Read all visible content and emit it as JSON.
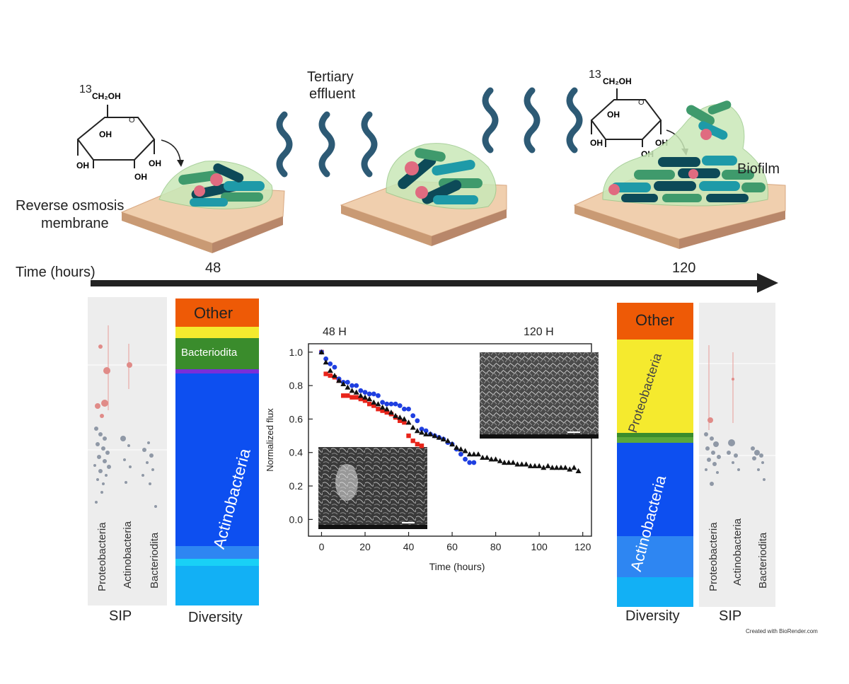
{
  "top": {
    "mol_left_label": "13",
    "mol_left_ch2oh": "CH₂OH",
    "mol_right_label": "13",
    "mol_right_ch2oh": "CH₂OH",
    "oh": "OH",
    "effluent_line1": "Tertiary",
    "effluent_line2": "effluent",
    "membrane_line1": "Reverse osmosis",
    "membrane_line2": "membrane",
    "biofilm": "Biofilm"
  },
  "timeline": {
    "label": "Time (hours)",
    "t1": "48",
    "t2": "120"
  },
  "left": {
    "sip_categories": [
      "Proteobacteria",
      "Actinobacteria",
      "Bacteriodita"
    ],
    "sip_title": "SIP",
    "diversity_title": "Diversity",
    "diversity_labels": {
      "other": "Other",
      "bacteriodita": "Bacteriodita",
      "actinobacteria": "Actinobacteria"
    }
  },
  "right": {
    "sip_categories": [
      "Proteobacteria",
      "Actinobacteria",
      "Bacteriodita"
    ],
    "sip_title": "SIP",
    "diversity_title": "Diversity",
    "diversity_labels": {
      "other": "Other",
      "proteobacteria": "Proteobacteria",
      "actinobacteria": "Actinobacteria"
    }
  },
  "chart_data": {
    "type": "scatter",
    "title": "",
    "annotations": [
      "48 H",
      "120 H"
    ],
    "xlabel": "Time (hours)",
    "ylabel": "Normalized flux",
    "xlim": [
      -6,
      124
    ],
    "ylim": [
      -0.1,
      1.05
    ],
    "xticks": [
      0,
      20,
      40,
      60,
      80,
      100,
      120
    ],
    "yticks": [
      0.0,
      0.2,
      0.4,
      0.6,
      0.8,
      1.0
    ],
    "series": [
      {
        "name": "red",
        "color": "#e8241a",
        "marker": "square",
        "x": [
          0,
          2,
          4,
          6,
          8,
          10,
          12,
          14,
          16,
          18,
          20,
          22,
          24,
          26,
          28,
          30,
          32,
          34,
          36,
          38,
          40,
          42,
          44,
          46
        ],
        "y": [
          1.0,
          0.87,
          0.86,
          0.85,
          0.83,
          0.74,
          0.74,
          0.73,
          0.73,
          0.72,
          0.71,
          0.69,
          0.68,
          0.66,
          0.65,
          0.64,
          0.63,
          0.61,
          0.59,
          0.58,
          0.5,
          0.47,
          0.45,
          0.44
        ]
      },
      {
        "name": "blue",
        "color": "#1f3fe0",
        "marker": "circle",
        "x": [
          0,
          2,
          4,
          6,
          8,
          10,
          12,
          14,
          16,
          18,
          20,
          22,
          24,
          26,
          28,
          30,
          32,
          34,
          36,
          38,
          40,
          42,
          44,
          46,
          48,
          50,
          52,
          54,
          56,
          58,
          60,
          62,
          64,
          66,
          68,
          70
        ],
        "y": [
          1.0,
          0.96,
          0.93,
          0.91,
          0.84,
          0.82,
          0.82,
          0.8,
          0.8,
          0.77,
          0.76,
          0.75,
          0.75,
          0.74,
          0.7,
          0.69,
          0.69,
          0.69,
          0.68,
          0.66,
          0.66,
          0.62,
          0.59,
          0.54,
          0.53,
          0.51,
          0.5,
          0.49,
          0.48,
          0.46,
          0.45,
          0.42,
          0.39,
          0.36,
          0.34,
          0.34
        ]
      },
      {
        "name": "black",
        "color": "#111111",
        "marker": "triangle",
        "x": [
          0,
          2,
          4,
          6,
          8,
          10,
          12,
          14,
          16,
          18,
          20,
          22,
          24,
          26,
          28,
          30,
          32,
          34,
          36,
          38,
          40,
          42,
          44,
          46,
          48,
          50,
          52,
          54,
          56,
          58,
          60,
          62,
          64,
          66,
          68,
          70,
          72,
          74,
          76,
          78,
          80,
          82,
          84,
          86,
          88,
          90,
          92,
          94,
          96,
          98,
          100,
          102,
          104,
          106,
          108,
          110,
          112,
          114,
          116,
          118
        ],
        "y": [
          1.0,
          0.94,
          0.89,
          0.86,
          0.83,
          0.81,
          0.79,
          0.77,
          0.76,
          0.74,
          0.73,
          0.72,
          0.7,
          0.69,
          0.67,
          0.66,
          0.64,
          0.62,
          0.61,
          0.6,
          0.58,
          0.55,
          0.53,
          0.52,
          0.51,
          0.51,
          0.5,
          0.49,
          0.48,
          0.47,
          0.45,
          0.43,
          0.42,
          0.41,
          0.39,
          0.39,
          0.39,
          0.37,
          0.37,
          0.36,
          0.36,
          0.35,
          0.34,
          0.34,
          0.34,
          0.33,
          0.33,
          0.33,
          0.32,
          0.32,
          0.32,
          0.31,
          0.32,
          0.31,
          0.31,
          0.31,
          0.31,
          0.3,
          0.31,
          0.29
        ]
      }
    ]
  },
  "footer": {
    "credit": "Created with BioRender.com"
  },
  "colors": {
    "bacteria_dark": "#0d4a58",
    "bacteria_teal": "#1e9aa8",
    "bacteria_green": "#3f9a6c",
    "pink": "#e06b80",
    "membrane": "#e4ba96",
    "wave": "#2d5a75",
    "other": "#ee5a06",
    "yellow": "#f5ea2e",
    "green": "#3a8c2c",
    "blue": "#0d4ff0",
    "cyan": "#12b0f5"
  }
}
